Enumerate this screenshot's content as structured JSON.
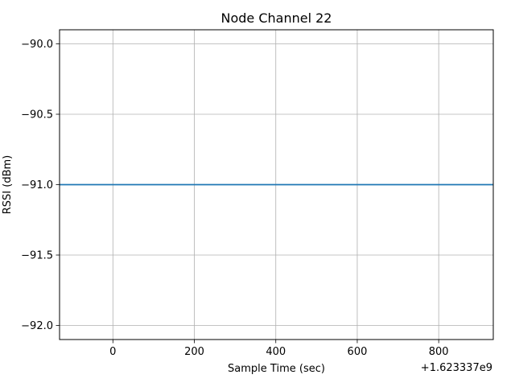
{
  "chart_data": {
    "type": "line",
    "title": "Node Channel 22",
    "xlabel": "Sample Time (sec)",
    "ylabel": "RSSI (dBm)",
    "x_offset_label": "+1.623337e9",
    "xlim": [
      -131,
      934
    ],
    "ylim": [
      -92.1,
      -89.9
    ],
    "x_ticks": [
      0,
      200,
      400,
      600,
      800
    ],
    "x_tick_labels": [
      "0",
      "200",
      "400",
      "600",
      "800"
    ],
    "y_ticks": [
      -90.0,
      -90.5,
      -91.0,
      -91.5,
      -92.0
    ],
    "y_tick_labels": [
      "−90.0",
      "−90.5",
      "−91.0",
      "−91.5",
      "−92.0"
    ],
    "grid": true,
    "series": [
      {
        "color": "#1f77b4",
        "x": [
          -131,
          934
        ],
        "y": [
          -91.0,
          -91.0
        ]
      }
    ]
  }
}
